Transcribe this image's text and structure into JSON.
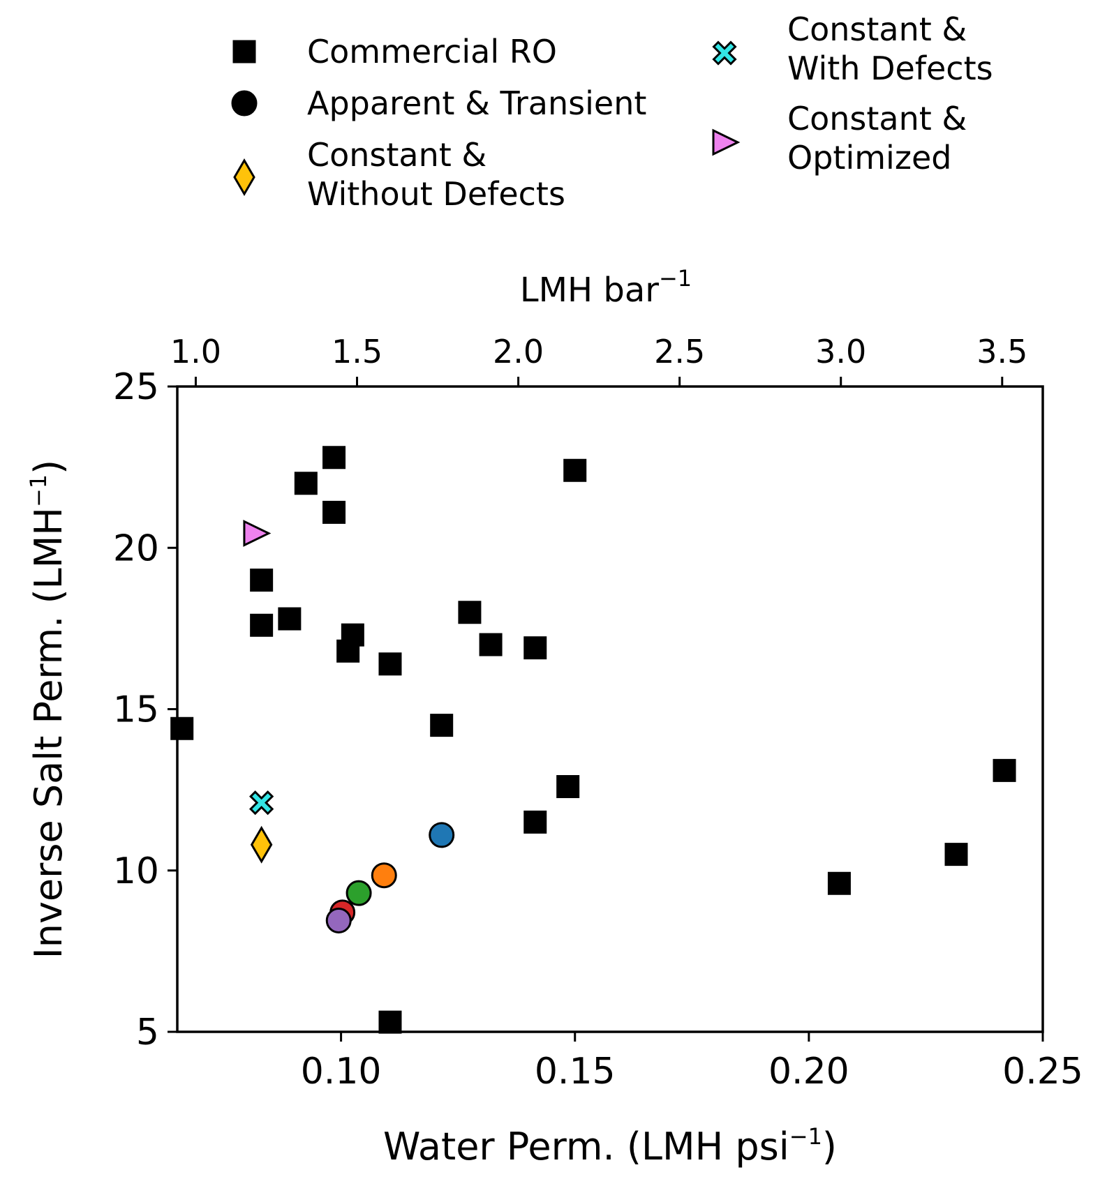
{
  "chart_data": {
    "type": "scatter",
    "xlabel": "Water Perm. (LMH psi",
    "xlabel_sup": "−1",
    "xlabel_end": ")",
    "ylabel": "Inverse Salt Perm. (LMH",
    "ylabel_sup": "−1",
    "ylabel_end": ")",
    "top_xlabel": "LMH bar",
    "top_xlabel_sup": "−1",
    "xlim": [
      0.065,
      0.25
    ],
    "ylim": [
      5,
      25
    ],
    "xticks": [
      0.1,
      0.15,
      0.2,
      0.25
    ],
    "xtick_labels": [
      "0.10",
      "0.15",
      "0.20",
      "0.25"
    ],
    "yticks": [
      5,
      10,
      15,
      20,
      25
    ],
    "ytick_labels": [
      "5",
      "10",
      "15",
      "20",
      "25"
    ],
    "top_xticks": [
      1.0,
      1.5,
      2.0,
      2.5,
      3.0,
      3.5
    ],
    "top_xtick_labels": [
      "1.0",
      "1.5",
      "2.0",
      "2.5",
      "3.0",
      "3.5"
    ],
    "psi_per_bar": 14.5038,
    "legend_position": "above plot",
    "series": [
      {
        "name": "Commercial RO",
        "label_lines": [
          "Commercial RO"
        ],
        "marker": "square",
        "color": "#000000",
        "points": [
          [
            0.066,
            14.4
          ],
          [
            0.083,
            19.0
          ],
          [
            0.083,
            17.6
          ],
          [
            0.089,
            17.8
          ],
          [
            0.0925,
            22.0
          ],
          [
            0.0985,
            22.8
          ],
          [
            0.0985,
            21.1
          ],
          [
            0.1015,
            16.8
          ],
          [
            0.1025,
            17.3
          ],
          [
            0.1105,
            16.4
          ],
          [
            0.1105,
            5.3
          ],
          [
            0.1215,
            14.5
          ],
          [
            0.1275,
            18.0
          ],
          [
            0.132,
            17.0
          ],
          [
            0.1415,
            16.9
          ],
          [
            0.1415,
            11.5
          ],
          [
            0.1485,
            12.6
          ],
          [
            0.15,
            22.4
          ],
          [
            0.2065,
            9.6
          ],
          [
            0.2315,
            10.5
          ],
          [
            0.2418,
            13.1
          ]
        ]
      },
      {
        "name": "Apparent & Transient",
        "label_lines": [
          "Apparent & Transient"
        ],
        "marker": "circle",
        "color": "#000000",
        "points": [
          [
            0.1215,
            11.1,
            "#1f77b4"
          ],
          [
            0.1092,
            9.85,
            "#ff7f0e"
          ],
          [
            0.1038,
            9.3,
            "#2ca02c"
          ],
          [
            0.1003,
            8.7,
            "#d62728"
          ],
          [
            0.0995,
            8.45,
            "#9467bd"
          ]
        ]
      },
      {
        "name": "Constant & Without Defects",
        "label_lines": [
          "Constant &",
          "Without Defects"
        ],
        "marker": "diamond",
        "color": "#ffc20a",
        "points": [
          [
            0.083,
            10.8
          ]
        ]
      },
      {
        "name": "Constant & With Defects",
        "label_lines": [
          "Constant &",
          "With Defects"
        ],
        "marker": "x",
        "color": "#33e6e6",
        "points": [
          [
            0.083,
            12.1
          ]
        ]
      },
      {
        "name": "Constant & Optimized",
        "label_lines": [
          "Constant &",
          "Optimized"
        ],
        "marker": "triangle-right",
        "color": "#ee82ee",
        "points": [
          [
            0.0817,
            20.45
          ]
        ]
      }
    ]
  }
}
